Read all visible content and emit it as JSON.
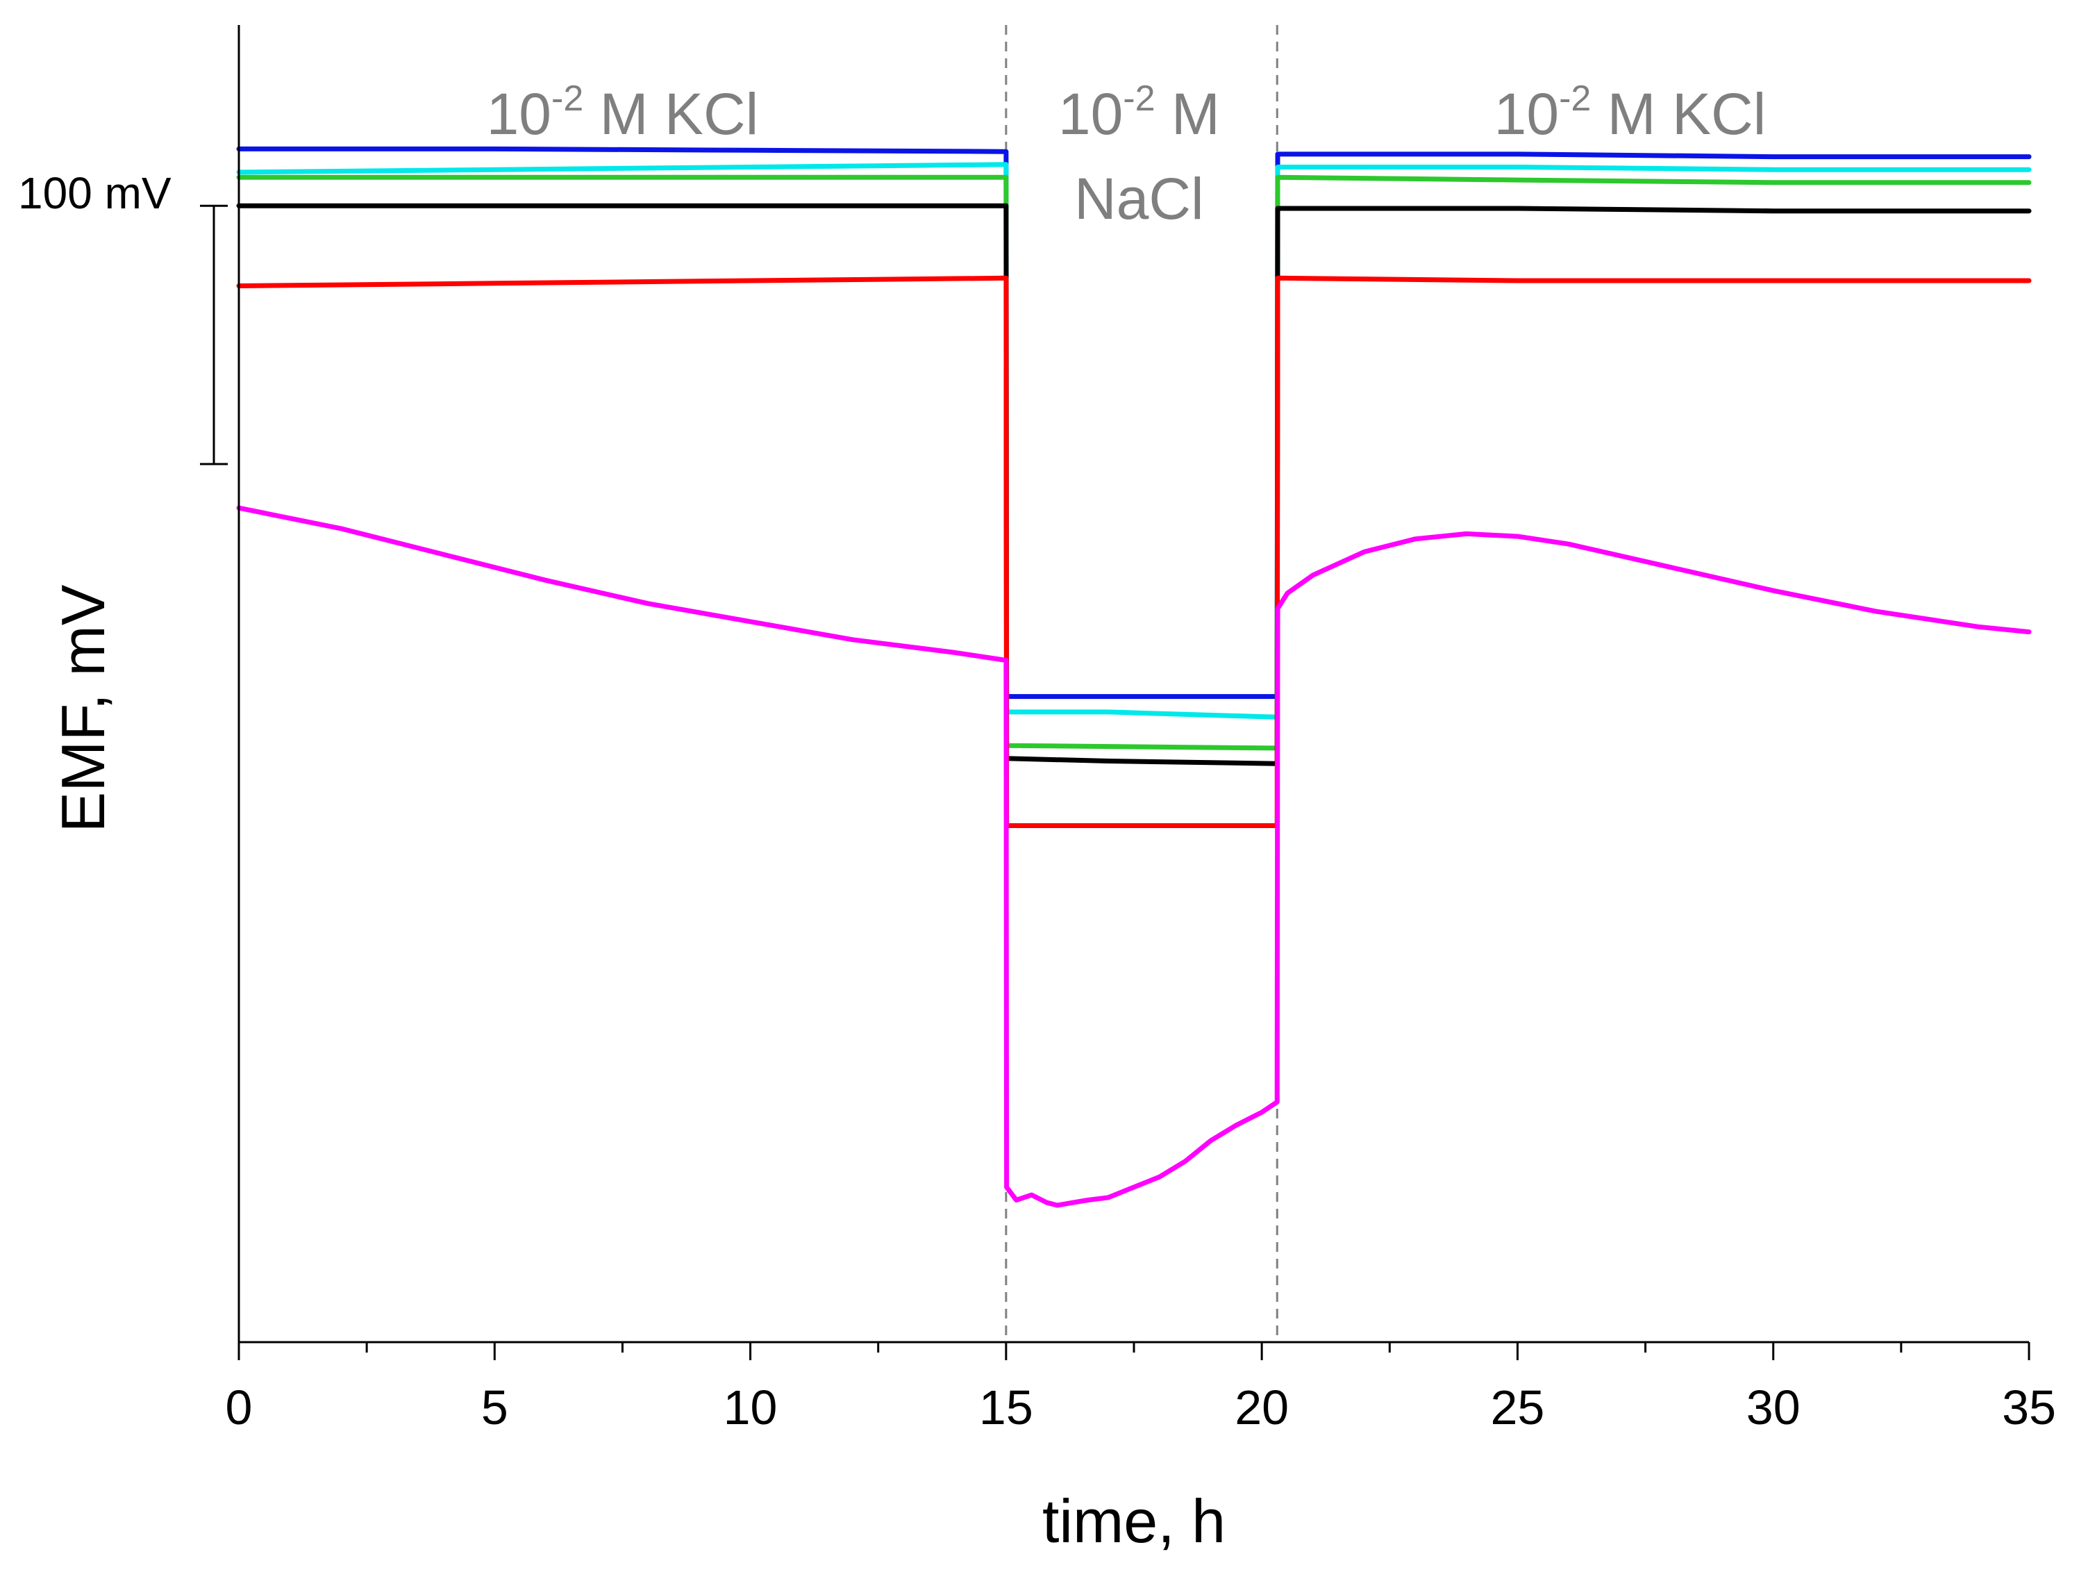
{
  "chart_data": {
    "type": "line",
    "title": "",
    "xlabel": "time, h",
    "ylabel": "EMF, mV",
    "xlim": [
      0,
      35
    ],
    "ylim": [
      -440,
      70
    ],
    "xticks": [
      0,
      5,
      10,
      15,
      20,
      25,
      30,
      35
    ],
    "xtick_labels": [
      "0",
      "5",
      "10",
      "15",
      "20",
      "25",
      "30",
      "35"
    ],
    "minor_xtick_step": 2.5,
    "yaxis_ticks": false,
    "boundaries": [
      15,
      20.3
    ],
    "regions": [
      {
        "exp": "-2",
        "label": "M KCl",
        "label2": "",
        "x_center": 7.5,
        "y_top": 50
      },
      {
        "exp": "-2",
        "label": "M",
        "label2": "NaCl",
        "x_center": 17.6,
        "y_top": 50
      },
      {
        "exp": "-2",
        "label": "M KCl",
        "label2": "",
        "x_center": 27.2,
        "y_top": 50
      }
    ],
    "base_label": "10",
    "scale_bar": {
      "label": "100 mV",
      "from": -100,
      "to": 0
    },
    "series": [
      {
        "name": "blue",
        "color": "#0a14e6",
        "x": [
          0,
          5,
          10,
          15,
          15.01,
          20.3,
          20.31,
          25,
          30,
          35
        ],
        "y": [
          22,
          22,
          21.5,
          21,
          -190,
          -190,
          20,
          20,
          19,
          19
        ]
      },
      {
        "name": "cyan",
        "color": "#00e8ea",
        "x": [
          0,
          5,
          10,
          15,
          15.01,
          17,
          20.3,
          20.31,
          25,
          30,
          35
        ],
        "y": [
          13,
          14,
          15,
          16,
          -196,
          -196,
          -198,
          15,
          15,
          14,
          14
        ]
      },
      {
        "name": "green",
        "color": "#2dc82d",
        "x": [
          0,
          5,
          10,
          15,
          15.01,
          20.3,
          20.31,
          25,
          30,
          35
        ],
        "y": [
          11,
          11,
          11,
          11,
          -209,
          -210,
          11,
          10,
          9,
          9
        ]
      },
      {
        "name": "black",
        "color": "#000000",
        "x": [
          0,
          5,
          10,
          15,
          15.01,
          17,
          20.3,
          20.31,
          25,
          30,
          35
        ],
        "y": [
          0,
          0,
          0,
          0,
          -214,
          -215,
          -216,
          -1,
          -1,
          -2,
          -2
        ]
      },
      {
        "name": "red",
        "color": "#ff0000",
        "x": [
          0,
          5,
          10,
          15,
          15.01,
          20.3,
          20.31,
          25,
          30,
          35
        ],
        "y": [
          -31,
          -30,
          -29,
          -28,
          -240,
          -240,
          -28,
          -29,
          -29,
          -29
        ]
      },
      {
        "name": "magenta",
        "color": "#ff00ff",
        "x": [
          0,
          2,
          4,
          6,
          8,
          10,
          12,
          14,
          15,
          15.01,
          15.2,
          15.5,
          15.8,
          16,
          16.3,
          16.6,
          17,
          17.5,
          18,
          18.5,
          19,
          19.5,
          20,
          20.3,
          20.31,
          20.5,
          21,
          22,
          23,
          24,
          25,
          26,
          28,
          30,
          32,
          34,
          35
        ],
        "y": [
          -117,
          -125,
          -135,
          -145,
          -154,
          -161,
          -168,
          -173,
          -176,
          -380,
          -385,
          -383,
          -386,
          -387,
          -386,
          -385,
          -384,
          -380,
          -376,
          -370,
          -362,
          -356,
          -351,
          -347,
          -156,
          -150,
          -143,
          -134,
          -129,
          -127,
          -128,
          -131,
          -140,
          -149,
          -157,
          -163,
          -165
        ]
      }
    ]
  }
}
